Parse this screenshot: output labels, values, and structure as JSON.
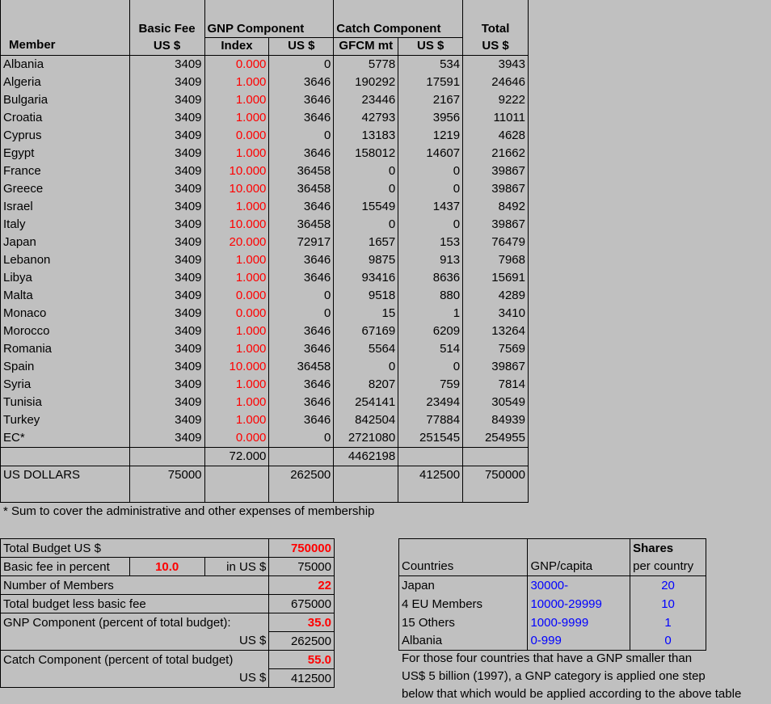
{
  "main": {
    "headers": {
      "member": "Member",
      "basic_fee": "Basic Fee",
      "basic_fee_unit": "US $",
      "gnp_component": "GNP Component",
      "gnp_index": "Index",
      "gnp_us": "US $",
      "catch_component": "Catch Component",
      "catch_gfcm": "GFCM mt",
      "catch_us": "US $",
      "total": "Total",
      "total_unit": "US $"
    },
    "rows": [
      {
        "member": "Albania",
        "fee": "3409",
        "index": "0.000",
        "gnp_us": "0",
        "gfcm": "5778",
        "catch_us": "534",
        "total": "3943"
      },
      {
        "member": "Algeria",
        "fee": "3409",
        "index": "1.000",
        "gnp_us": "3646",
        "gfcm": "190292",
        "catch_us": "17591",
        "total": "24646"
      },
      {
        "member": "Bulgaria",
        "fee": "3409",
        "index": "1.000",
        "gnp_us": "3646",
        "gfcm": "23446",
        "catch_us": "2167",
        "total": "9222"
      },
      {
        "member": "Croatia",
        "fee": "3409",
        "index": "1.000",
        "gnp_us": "3646",
        "gfcm": "42793",
        "catch_us": "3956",
        "total": "11011"
      },
      {
        "member": "Cyprus",
        "fee": "3409",
        "index": "0.000",
        "gnp_us": "0",
        "gfcm": "13183",
        "catch_us": "1219",
        "total": "4628"
      },
      {
        "member": "Egypt",
        "fee": "3409",
        "index": "1.000",
        "gnp_us": "3646",
        "gfcm": "158012",
        "catch_us": "14607",
        "total": "21662"
      },
      {
        "member": "France",
        "fee": "3409",
        "index": "10.000",
        "gnp_us": "36458",
        "gfcm": "0",
        "catch_us": "0",
        "total": "39867"
      },
      {
        "member": "Greece",
        "fee": "3409",
        "index": "10.000",
        "gnp_us": "36458",
        "gfcm": "0",
        "catch_us": "0",
        "total": "39867"
      },
      {
        "member": "Israel",
        "fee": "3409",
        "index": "1.000",
        "gnp_us": "3646",
        "gfcm": "15549",
        "catch_us": "1437",
        "total": "8492"
      },
      {
        "member": "Italy",
        "fee": "3409",
        "index": "10.000",
        "gnp_us": "36458",
        "gfcm": "0",
        "catch_us": "0",
        "total": "39867"
      },
      {
        "member": "Japan",
        "fee": "3409",
        "index": "20.000",
        "gnp_us": "72917",
        "gfcm": "1657",
        "catch_us": "153",
        "total": "76479"
      },
      {
        "member": "Lebanon",
        "fee": "3409",
        "index": "1.000",
        "gnp_us": "3646",
        "gfcm": "9875",
        "catch_us": "913",
        "total": "7968"
      },
      {
        "member": "Libya",
        "fee": "3409",
        "index": "1.000",
        "gnp_us": "3646",
        "gfcm": "93416",
        "catch_us": "8636",
        "total": "15691"
      },
      {
        "member": "Malta",
        "fee": "3409",
        "index": "0.000",
        "gnp_us": "0",
        "gfcm": "9518",
        "catch_us": "880",
        "total": "4289"
      },
      {
        "member": "Monaco",
        "fee": "3409",
        "index": "0.000",
        "gnp_us": "0",
        "gfcm": "15",
        "catch_us": "1",
        "total": "3410"
      },
      {
        "member": "Morocco",
        "fee": "3409",
        "index": "1.000",
        "gnp_us": "3646",
        "gfcm": "67169",
        "catch_us": "6209",
        "total": "13264"
      },
      {
        "member": "Romania",
        "fee": "3409",
        "index": "1.000",
        "gnp_us": "3646",
        "gfcm": "5564",
        "catch_us": "514",
        "total": "7569"
      },
      {
        "member": "Spain",
        "fee": "3409",
        "index": "10.000",
        "gnp_us": "36458",
        "gfcm": "0",
        "catch_us": "0",
        "total": "39867"
      },
      {
        "member": "Syria",
        "fee": "3409",
        "index": "1.000",
        "gnp_us": "3646",
        "gfcm": "8207",
        "catch_us": "759",
        "total": "7814"
      },
      {
        "member": "Tunisia",
        "fee": "3409",
        "index": "1.000",
        "gnp_us": "3646",
        "gfcm": "254141",
        "catch_us": "23494",
        "total": "30549"
      },
      {
        "member": "Turkey",
        "fee": "3409",
        "index": "1.000",
        "gnp_us": "3646",
        "gfcm": "842504",
        "catch_us": "77884",
        "total": "84939"
      },
      {
        "member": "EC*",
        "fee": "3409",
        "index": "0.000",
        "gnp_us": "0",
        "gfcm": "2721080",
        "catch_us": "251545",
        "total": "254955"
      }
    ],
    "sum_row": {
      "index": "72.000",
      "gfcm": "4462198"
    },
    "us_dollars_row": {
      "label": "US DOLLARS",
      "fee": "75000",
      "gnp_us": "262500",
      "catch_us": "412500",
      "total": "750000"
    }
  },
  "footnote": "* Sum to cover the administrative and other expenses of membership",
  "budget": {
    "total_budget_label": "Total Budget US $",
    "total_budget_value": "750000",
    "basic_fee_pct_label": "Basic fee in percent",
    "basic_fee_pct_value": "10.0",
    "in_us_label": "in US $",
    "in_us_value": "75000",
    "members_label": "Number of Members",
    "members_value": "22",
    "less_fee_label": "Total budget less basic fee",
    "less_fee_value": "675000",
    "gnp_pct_label": "GNP Component (percent of total budget):",
    "gnp_pct_value": "35.0",
    "gnp_us_label": "US $",
    "gnp_us_value": "262500",
    "catch_pct_label": "Catch Component (percent of total budget)",
    "catch_pct_value": "55.0",
    "catch_us_label": "US $",
    "catch_us_value": "412500"
  },
  "shares": {
    "col_countries": "Countries",
    "col_gnp": "GNP/capita",
    "col_shares_title": "Shares",
    "col_shares_sub": "per country",
    "rows": [
      {
        "country": "Japan",
        "gnp": "30000-",
        "shares": "20"
      },
      {
        "country": "4 EU Members",
        "gnp": "10000-29999",
        "shares": "10"
      },
      {
        "country": "15 Others",
        "gnp": "1000-9999",
        "shares": "1"
      },
      {
        "country": "Albania",
        "gnp": "0-999",
        "shares": "0"
      }
    ],
    "note_lines": [
      "For those four countries that have a GNP smaller than",
      "US$ 5 billion (1997), a GNP category is applied one step",
      "below  that which would be applied according to the above table"
    ]
  },
  "colors": {
    "background": "#c0c0c0",
    "highlight_red": "#ff0000",
    "link_blue": "#0000ff"
  }
}
